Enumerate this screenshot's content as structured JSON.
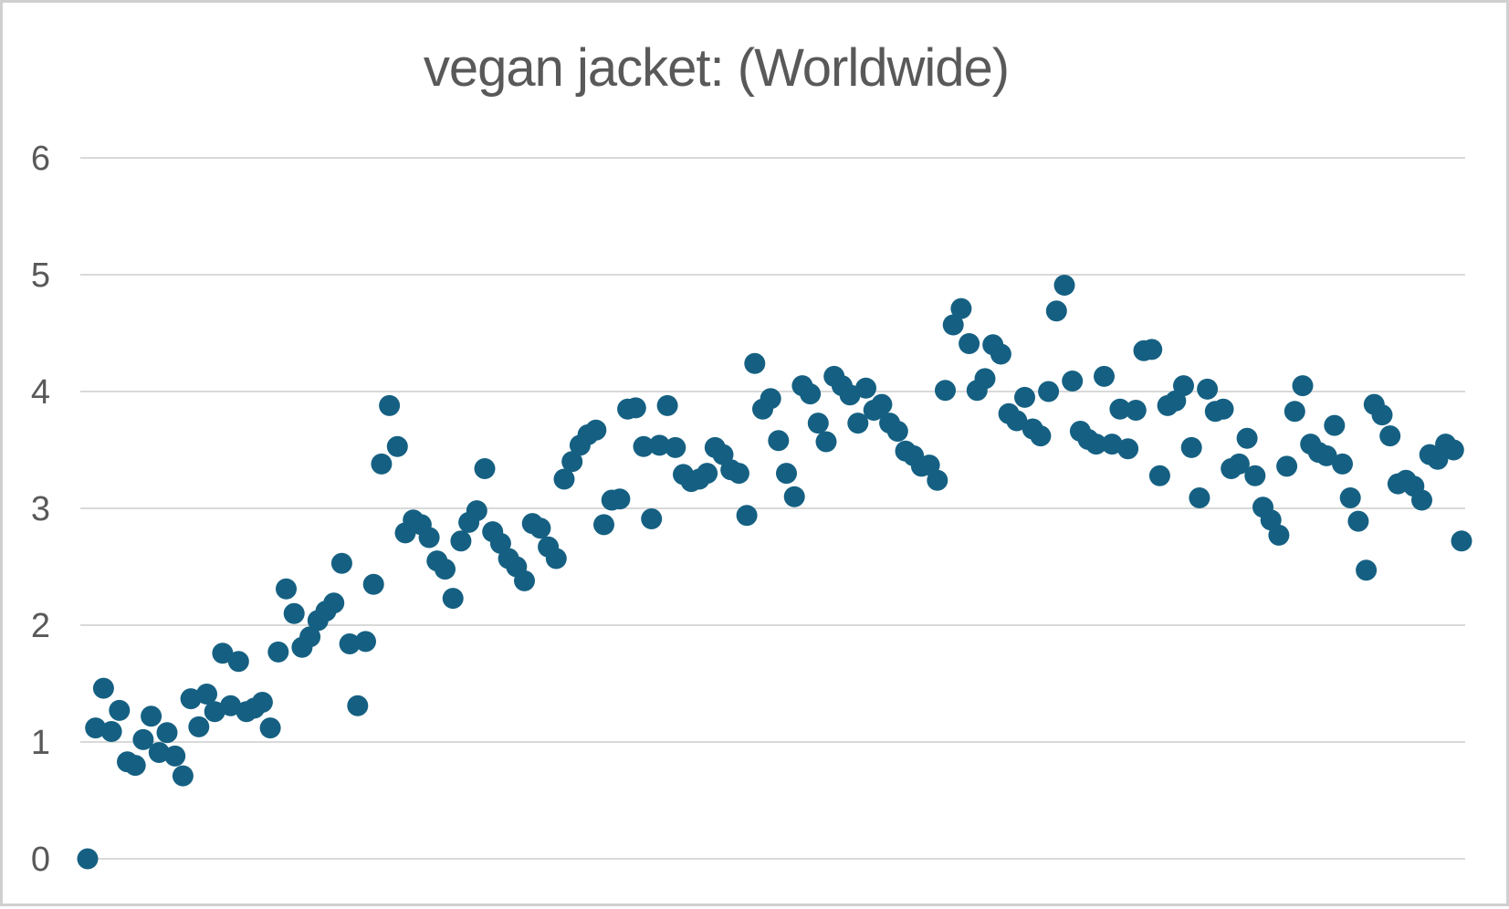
{
  "window": {
    "background": "#ffffff",
    "border_color": "#cfcfcf"
  },
  "chart_data": {
    "type": "scatter",
    "title": "vegan jacket: (Worldwide)",
    "title_color": "#595959",
    "xlabel": "",
    "ylabel": "",
    "x_axis_labels_visible": false,
    "ylim": [
      0,
      6
    ],
    "yticks": [
      0,
      1,
      2,
      3,
      4,
      5,
      6
    ],
    "grid": "horizontal",
    "grid_color": "#d9d9d9",
    "axis_label_color": "#595959",
    "legend": "none",
    "point_color": "#156082",
    "series_name": "vegan jacket",
    "values": [
      0.0,
      1.12,
      1.46,
      1.09,
      1.27,
      0.83,
      0.8,
      1.02,
      1.22,
      0.91,
      1.08,
      0.88,
      0.71,
      1.37,
      1.13,
      1.41,
      1.26,
      1.76,
      1.31,
      1.69,
      1.26,
      1.29,
      1.34,
      1.12,
      1.77,
      2.31,
      2.1,
      1.81,
      1.9,
      2.04,
      2.12,
      2.19,
      2.53,
      1.84,
      1.31,
      1.86,
      2.35,
      3.38,
      3.88,
      3.53,
      2.79,
      2.9,
      2.86,
      2.75,
      2.55,
      2.48,
      2.23,
      2.72,
      2.88,
      2.98,
      3.34,
      2.8,
      2.7,
      2.57,
      2.5,
      2.38,
      2.87,
      2.83,
      2.67,
      2.57,
      3.25,
      3.4,
      3.54,
      3.63,
      3.67,
      2.86,
      3.07,
      3.08,
      3.85,
      3.86,
      3.53,
      2.91,
      3.54,
      3.88,
      3.52,
      3.29,
      3.23,
      3.25,
      3.3,
      3.52,
      3.46,
      3.33,
      3.3,
      2.94,
      4.24,
      3.85,
      3.94,
      3.58,
      3.3,
      3.1,
      4.05,
      3.98,
      3.73,
      3.57,
      4.13,
      4.05,
      3.97,
      3.73,
      4.03,
      3.84,
      3.89,
      3.73,
      3.66,
      3.49,
      3.45,
      3.36,
      3.37,
      3.24,
      4.01,
      4.57,
      4.71,
      4.41,
      4.01,
      4.11,
      4.4,
      4.32,
      3.81,
      3.75,
      3.95,
      3.68,
      3.62,
      4.0,
      4.69,
      4.91,
      4.09,
      3.66,
      3.59,
      3.55,
      4.13,
      3.55,
      3.85,
      3.51,
      3.84,
      4.35,
      4.36,
      3.28,
      3.88,
      3.92,
      4.05,
      3.52,
      3.09,
      4.02,
      3.83,
      3.85,
      3.34,
      3.38,
      3.6,
      3.28,
      3.01,
      2.9,
      2.77,
      3.36,
      3.83,
      4.05,
      3.55,
      3.48,
      3.45,
      3.71,
      3.38,
      3.09,
      2.89,
      2.47,
      3.89,
      3.8,
      3.62,
      3.21,
      3.24,
      3.19,
      3.07,
      3.46,
      3.42,
      3.55,
      3.5,
      2.72
    ]
  }
}
